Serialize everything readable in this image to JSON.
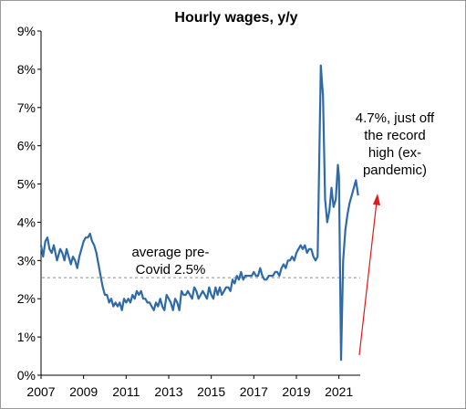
{
  "chart_data": {
    "type": "line",
    "title": "Hourly wages, y/y",
    "xlabel": "",
    "ylabel": "",
    "ylim": [
      0,
      9
    ],
    "y_ticks": [
      "0%",
      "1%",
      "2%",
      "3%",
      "4%",
      "5%",
      "6%",
      "7%",
      "8%",
      "9%"
    ],
    "x_ticks": [
      "2007",
      "2009",
      "2011",
      "2013",
      "2015",
      "2017",
      "2019",
      "2021"
    ],
    "xlim": [
      2007.0,
      2022.0
    ],
    "grid": false,
    "legend": "none",
    "colors": {
      "series": "#2e6aa8",
      "reference": "#8c8c8c",
      "arrow": "#e0191c"
    },
    "reference_line": {
      "value": 2.55,
      "style": "dashed"
    },
    "series": [
      {
        "x": [
          2007.0,
          2007.1,
          2007.2,
          2007.3,
          2007.4,
          2007.5,
          2007.6,
          2007.75,
          2007.9,
          2008.0,
          2008.1,
          2008.2,
          2008.3,
          2008.4,
          2008.5,
          2008.6,
          2008.7,
          2008.8,
          2008.9,
          2009.0,
          2009.1,
          2009.2,
          2009.3,
          2009.4,
          2009.5,
          2009.6,
          2009.7,
          2009.8,
          2009.9,
          2010.0,
          2010.1,
          2010.2,
          2010.3,
          2010.4,
          2010.5,
          2010.6,
          2010.7,
          2010.8,
          2010.9,
          2011.0,
          2011.1,
          2011.2,
          2011.3,
          2011.4,
          2011.5,
          2011.6,
          2011.7,
          2011.8,
          2011.9,
          2012.0,
          2012.1,
          2012.2,
          2012.3,
          2012.4,
          2012.5,
          2012.6,
          2012.7,
          2012.8,
          2012.9,
          2013.0,
          2013.1,
          2013.2,
          2013.3,
          2013.4,
          2013.5,
          2013.6,
          2013.7,
          2013.8,
          2013.9,
          2014.0,
          2014.1,
          2014.2,
          2014.3,
          2014.4,
          2014.5,
          2014.6,
          2014.7,
          2014.8,
          2014.9,
          2015.0,
          2015.1,
          2015.2,
          2015.3,
          2015.4,
          2015.5,
          2015.6,
          2015.7,
          2015.8,
          2015.9,
          2016.0,
          2016.1,
          2016.2,
          2016.3,
          2016.4,
          2016.5,
          2016.6,
          2016.7,
          2016.8,
          2016.9,
          2017.0,
          2017.1,
          2017.2,
          2017.3,
          2017.4,
          2017.5,
          2017.6,
          2017.7,
          2017.8,
          2017.9,
          2018.0,
          2018.1,
          2018.2,
          2018.3,
          2018.4,
          2018.5,
          2018.6,
          2018.7,
          2018.8,
          2018.9,
          2019.0,
          2019.1,
          2019.2,
          2019.3,
          2019.4,
          2019.5,
          2019.6,
          2019.7,
          2019.8,
          2019.9,
          2020.0,
          2020.15,
          2020.25,
          2020.35,
          2020.45,
          2020.55,
          2020.65,
          2020.75,
          2020.85,
          2020.95,
          2021.0,
          2021.1,
          2021.2,
          2021.3,
          2021.4,
          2021.5,
          2021.6,
          2021.7,
          2021.8,
          2021.9
        ],
        "y": [
          3.4,
          3.1,
          3.5,
          3.6,
          3.3,
          3.2,
          3.4,
          3.0,
          3.3,
          3.2,
          3.0,
          3.3,
          3.1,
          2.9,
          3.1,
          3.0,
          2.8,
          3.1,
          3.3,
          3.5,
          3.6,
          3.6,
          3.7,
          3.5,
          3.4,
          3.2,
          2.9,
          2.6,
          2.3,
          2.1,
          2.1,
          1.9,
          2.0,
          1.8,
          1.9,
          1.8,
          1.9,
          1.7,
          2.0,
          1.9,
          2.0,
          1.9,
          2.1,
          2.0,
          2.2,
          2.1,
          2.2,
          2.0,
          2.0,
          1.9,
          1.9,
          1.8,
          1.7,
          1.9,
          1.8,
          2.0,
          1.8,
          1.7,
          2.1,
          2.0,
          1.9,
          1.7,
          2.0,
          1.9,
          1.7,
          2.2,
          2.1,
          2.1,
          2.2,
          2.1,
          2.0,
          2.3,
          2.2,
          2.0,
          2.1,
          2.2,
          2.1,
          2.0,
          2.3,
          2.1,
          2.0,
          2.3,
          2.1,
          2.3,
          2.1,
          2.2,
          2.3,
          2.3,
          2.2,
          2.5,
          2.4,
          2.6,
          2.5,
          2.7,
          2.5,
          2.6,
          2.6,
          2.6,
          2.6,
          2.7,
          2.6,
          2.6,
          2.8,
          2.6,
          2.5,
          2.5,
          2.6,
          2.6,
          2.6,
          2.7,
          2.7,
          2.6,
          2.8,
          2.9,
          2.8,
          3.0,
          3.0,
          3.1,
          3.0,
          3.2,
          3.3,
          3.4,
          3.3,
          3.4,
          3.2,
          3.3,
          3.3,
          3.1,
          3.0,
          3.1,
          8.1,
          7.3,
          4.6,
          4.0,
          4.3,
          4.9,
          4.4,
          4.6,
          5.5,
          5.2,
          0.4,
          3.0,
          3.8,
          4.2,
          4.5,
          4.7,
          4.9,
          5.1,
          4.7
        ]
      }
    ],
    "annotations": [
      {
        "lines": [
          "average pre-",
          "Covid 2.5%"
        ]
      },
      {
        "lines": [
          "4.7%, just off",
          "the record",
          "high (ex-",
          "pandemic)"
        ]
      }
    ]
  }
}
